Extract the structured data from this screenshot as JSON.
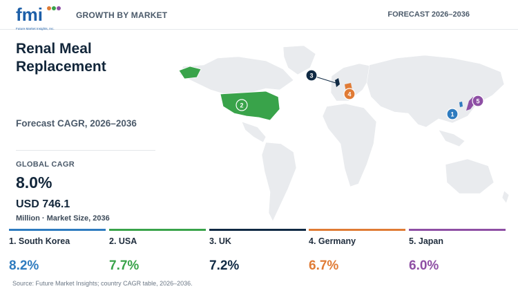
{
  "header": {
    "logo_text": "fmi",
    "logo_tagline": "Future Market Insights, Inc.",
    "growth_label": "GROWTH BY MARKET",
    "forecast_label": "FORECAST 2026–2036"
  },
  "summary": {
    "title": "Renal Meal Replacement",
    "subtitle": "Forecast CAGR, 2026–2036",
    "global_cagr_label": "GLOBAL CAGR",
    "global_cagr_value": "8.0%",
    "market_size_value": "USD 746.1",
    "market_size_unit": "Million · Market Size, 2036"
  },
  "countries": [
    {
      "rank": "1",
      "name": "1. South Korea",
      "cagr": "8.2%",
      "color": "#2e7bbf"
    },
    {
      "rank": "2",
      "name": "2. USA",
      "cagr": "7.7%",
      "color": "#39a34a"
    },
    {
      "rank": "3",
      "name": "3. UK",
      "cagr": "7.2%",
      "color": "#102a44"
    },
    {
      "rank": "4",
      "name": "4. Germany",
      "cagr": "6.7%",
      "color": "#e07b35"
    },
    {
      "rank": "5",
      "name": "5. Japan",
      "cagr": "6.0%",
      "color": "#8e4fa4"
    }
  ],
  "map": {
    "land_color": "#e9ebee",
    "highlighted": [
      "South Korea",
      "USA",
      "UK",
      "Germany",
      "Japan"
    ]
  },
  "source": "Source: Future Market Insights; country CAGR table, 2026–2036."
}
